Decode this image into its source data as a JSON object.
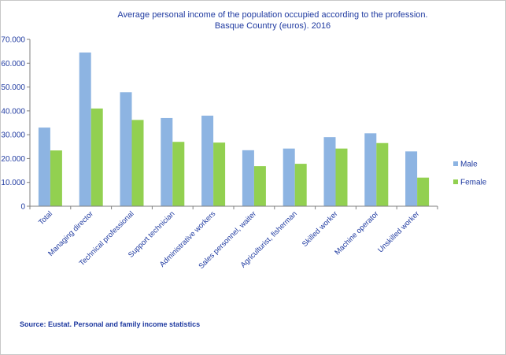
{
  "chart_data": {
    "type": "bar",
    "title": "Average personal income of the population occupied according to the profession.",
    "subtitle": "Basque Country (euros). 2016",
    "xlabel": "",
    "ylabel": "",
    "ylim": [
      0,
      70000
    ],
    "yticks": [
      0,
      10000,
      20000,
      30000,
      40000,
      50000,
      60000,
      70000
    ],
    "ytick_labels": [
      "0",
      "10.000",
      "20.000",
      "30.000",
      "40.000",
      "50.000",
      "60.000",
      "70.000"
    ],
    "grid": false,
    "legend_position": "right",
    "categories": [
      "Total",
      "Managing director",
      "Technical professional",
      "Support technician",
      "Administrative workers",
      "Sales personnel, waiter",
      "Agriculturist, fisherman",
      "Skilled worker",
      "Machine operator",
      "Unskilled worker"
    ],
    "series": [
      {
        "name": "Male",
        "color": "#8db4e2",
        "values": [
          33000,
          64500,
          47800,
          37000,
          38000,
          23500,
          24200,
          29000,
          30600,
          23000
        ]
      },
      {
        "name": "Female",
        "color": "#92d050",
        "values": [
          23400,
          41000,
          36200,
          27000,
          26700,
          16800,
          17800,
          24200,
          26500,
          12000
        ]
      }
    ]
  },
  "colors": {
    "axis": "#7f7f7f",
    "text": "#1f3aa0"
  },
  "source": "Source: Eustat. Personal and family income statistics"
}
